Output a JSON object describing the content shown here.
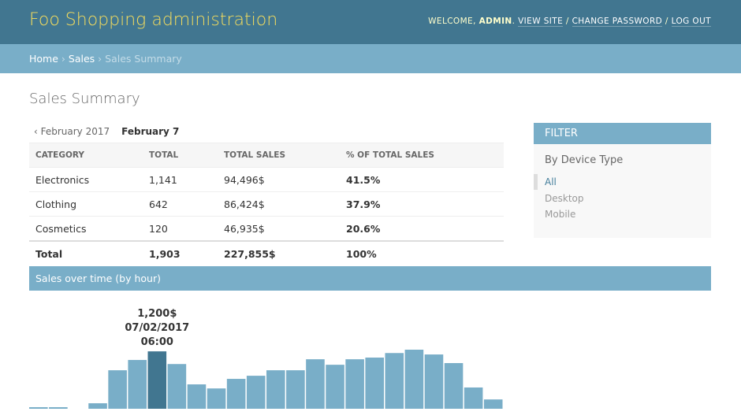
{
  "header": {
    "title": "Foo Shopping administration",
    "welcome": "WELCOME,",
    "user": "ADMIN",
    "period": ".",
    "view_site": "VIEW SITE",
    "separator": "/",
    "change_password": "CHANGE PASSWORD",
    "log_out": "LOG OUT"
  },
  "breadcrumbs": {
    "items": [
      "Home",
      "Sales",
      "Sales Summary"
    ],
    "separator": "›"
  },
  "page_title": "Sales Summary",
  "date_hierarchy": {
    "back": "‹ February 2017",
    "current": "February 7"
  },
  "table": {
    "headers": [
      "CATEGORY",
      "TOTAL",
      "TOTAL SALES",
      "% OF TOTAL SALES"
    ],
    "rows": [
      [
        "Electronics",
        "1,141",
        "94,496$",
        "41.5%"
      ],
      [
        "Clothing",
        "642",
        "86,424$",
        "37.9%"
      ],
      [
        "Cosmetics",
        "120",
        "46,935$",
        "20.6%"
      ]
    ],
    "total": [
      "Total",
      "1,903",
      "227,855$",
      "100%"
    ]
  },
  "chart": {
    "title": "Sales over time (by hour)",
    "x": [
      null,
      null,
      null,
      null,
      null,
      null,
      "06:00",
      null,
      null,
      null,
      null,
      null,
      null,
      null,
      null,
      null,
      null,
      null,
      null,
      null,
      null,
      null,
      null,
      null
    ],
    "values": [
      33,
      33,
      0,
      115,
      805,
      1020,
      1200,
      935,
      510,
      425,
      625,
      690,
      805,
      805,
      1035,
      920,
      1035,
      1070,
      1165,
      1235,
      1135,
      955,
      445,
      195
    ],
    "tooltip": {
      "value_label": "1,200$",
      "date": "07/02/2017"
    },
    "color": "#79aec8",
    "highlight_color": "#417690"
  },
  "filter": {
    "title": "FILTER",
    "heading": "By Device Type",
    "options": [
      "All",
      "Desktop",
      "Mobile"
    ]
  }
}
